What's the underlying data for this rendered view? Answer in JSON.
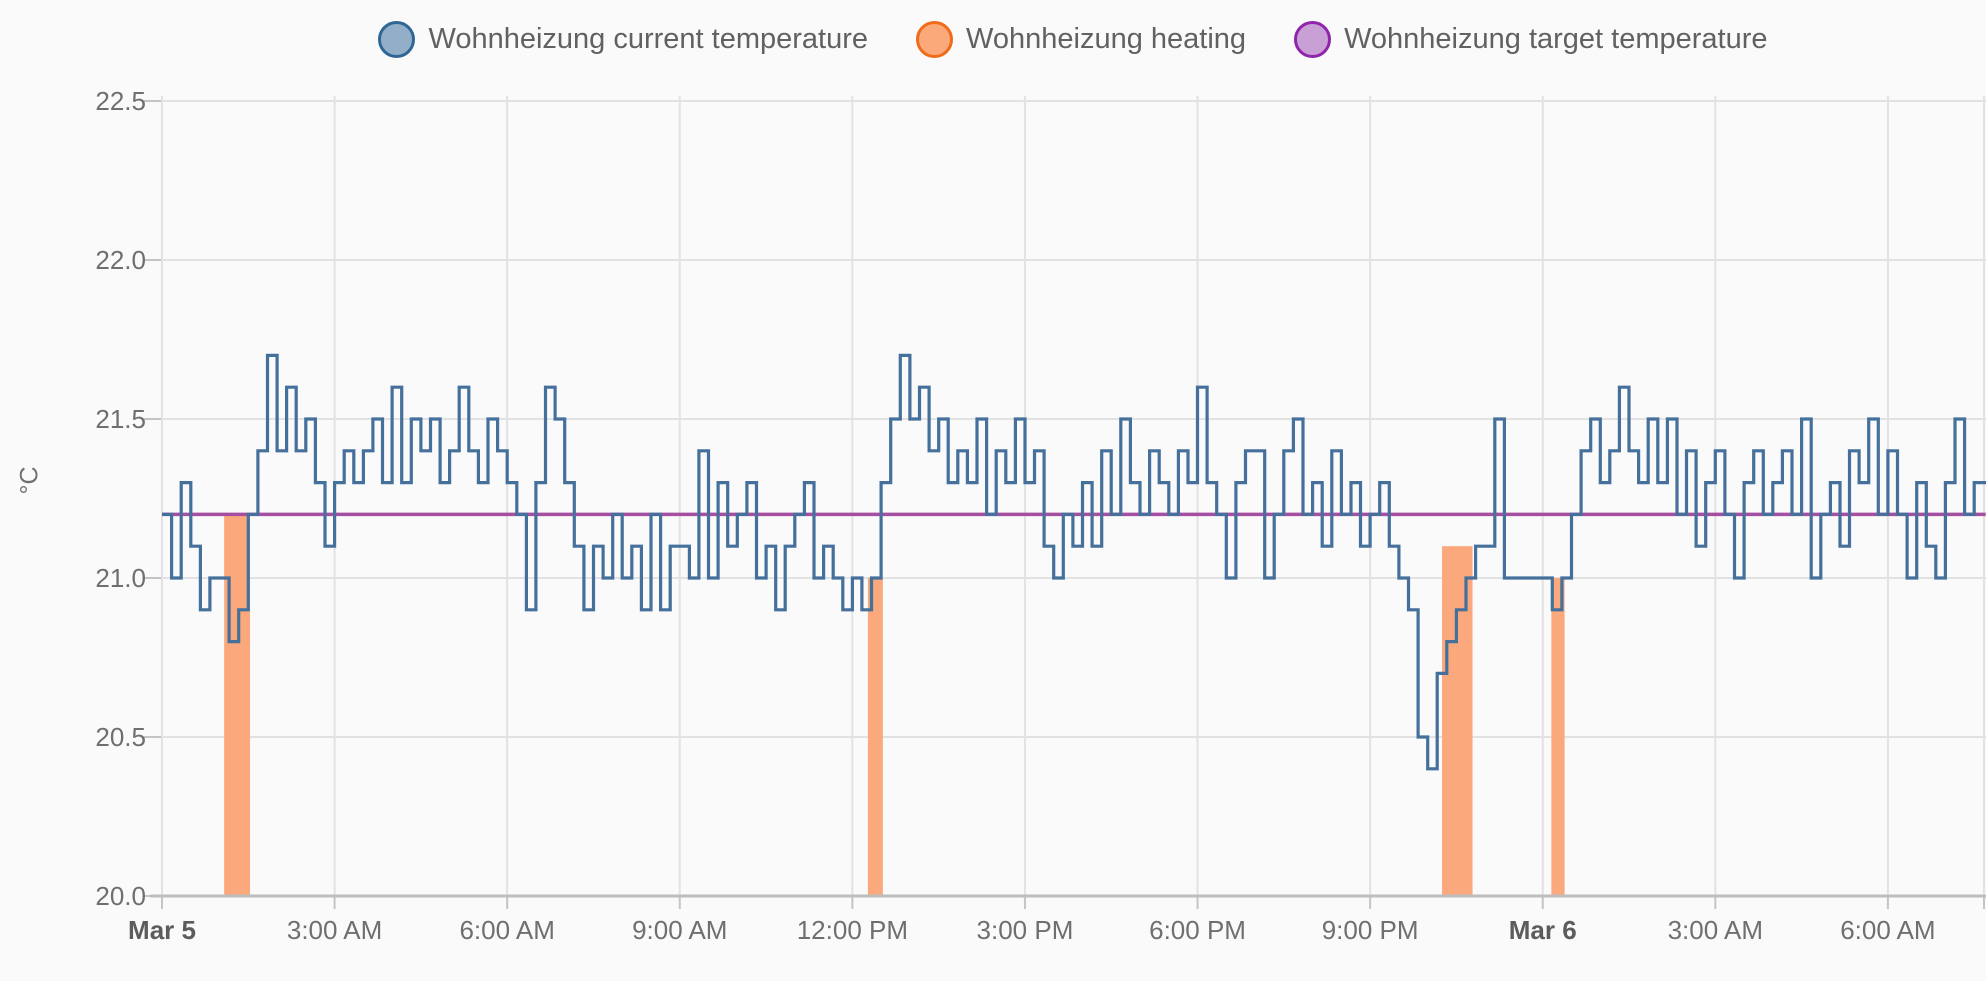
{
  "legend": {
    "items": [
      {
        "id": "current",
        "label": "Wohnheizung current temperature",
        "marker_fill": "#93aec8",
        "marker_stroke": "#2f6694"
      },
      {
        "id": "heating",
        "label": "Wohnheizung heating",
        "marker_fill": "#fba87a",
        "marker_stroke": "#ef6c1a"
      },
      {
        "id": "target",
        "label": "Wohnheizung target temperature",
        "marker_fill": "#c9a0d6",
        "marker_stroke": "#8f25ab"
      }
    ]
  },
  "chart_data": {
    "type": "line",
    "title": "",
    "ylabel": "°C",
    "ylim": [
      20.0,
      22.5
    ],
    "grid": true,
    "legend_position": "top",
    "y_ticks": [
      {
        "value": 22.5,
        "label": "22.5"
      },
      {
        "value": 22.0,
        "label": "22.0"
      },
      {
        "value": 21.5,
        "label": "21.5"
      },
      {
        "value": 21.0,
        "label": "21.0"
      },
      {
        "value": 20.5,
        "label": "20.5"
      },
      {
        "value": 20.0,
        "label": "20.0"
      }
    ],
    "x_ticks": [
      {
        "hour": 0,
        "label": "Mar 5",
        "bold": true
      },
      {
        "hour": 3,
        "label": "3:00 AM",
        "bold": false
      },
      {
        "hour": 6,
        "label": "6:00 AM",
        "bold": false
      },
      {
        "hour": 9,
        "label": "9:00 AM",
        "bold": false
      },
      {
        "hour": 12,
        "label": "12:00 PM",
        "bold": false
      },
      {
        "hour": 15,
        "label": "3:00 PM",
        "bold": false
      },
      {
        "hour": 18,
        "label": "6:00 PM",
        "bold": false
      },
      {
        "hour": 21,
        "label": "9:00 PM",
        "bold": false
      },
      {
        "hour": 24,
        "label": "Mar 6",
        "bold": true
      },
      {
        "hour": 27,
        "label": "3:00 AM",
        "bold": false
      },
      {
        "hour": 30,
        "label": "6:00 AM",
        "bold": false
      }
    ],
    "x_hours_total": 31.7,
    "series": [
      {
        "name": "Wohnheizung current temperature",
        "type": "step_line",
        "color": "#45709c",
        "start_hour": 0,
        "step_minutes": 10,
        "values": [
          21.2,
          21.0,
          21.3,
          21.1,
          20.9,
          21.0,
          21.0,
          20.8,
          20.9,
          21.2,
          21.4,
          21.7,
          21.4,
          21.6,
          21.4,
          21.5,
          21.3,
          21.1,
          21.3,
          21.4,
          21.3,
          21.4,
          21.5,
          21.3,
          21.6,
          21.3,
          21.5,
          21.4,
          21.5,
          21.3,
          21.4,
          21.6,
          21.4,
          21.3,
          21.5,
          21.4,
          21.3,
          21.2,
          20.9,
          21.3,
          21.6,
          21.5,
          21.3,
          21.1,
          20.9,
          21.1,
          21.0,
          21.2,
          21.0,
          21.1,
          20.9,
          21.2,
          20.9,
          21.1,
          21.1,
          21.0,
          21.4,
          21.0,
          21.3,
          21.1,
          21.2,
          21.3,
          21.0,
          21.1,
          20.9,
          21.1,
          21.2,
          21.3,
          21.0,
          21.1,
          21.0,
          20.9,
          21.0,
          20.9,
          21.0,
          21.3,
          21.5,
          21.7,
          21.5,
          21.6,
          21.4,
          21.5,
          21.3,
          21.4,
          21.3,
          21.5,
          21.2,
          21.4,
          21.3,
          21.5,
          21.3,
          21.4,
          21.1,
          21.0,
          21.2,
          21.1,
          21.3,
          21.1,
          21.4,
          21.2,
          21.5,
          21.3,
          21.2,
          21.4,
          21.3,
          21.2,
          21.4,
          21.3,
          21.6,
          21.3,
          21.2,
          21.0,
          21.3,
          21.4,
          21.4,
          21.0,
          21.2,
          21.4,
          21.5,
          21.2,
          21.3,
          21.1,
          21.4,
          21.2,
          21.3,
          21.1,
          21.2,
          21.3,
          21.1,
          21.0,
          20.9,
          20.5,
          20.4,
          20.7,
          20.8,
          20.9,
          21.0,
          21.1,
          21.1,
          21.5,
          21.0,
          21.0,
          21.0,
          21.0,
          21.0,
          20.9,
          21.0,
          21.2,
          21.4,
          21.5,
          21.3,
          21.4,
          21.6,
          21.4,
          21.3,
          21.5,
          21.3,
          21.5,
          21.2,
          21.4,
          21.1,
          21.3,
          21.4,
          21.2,
          21.0,
          21.3,
          21.4,
          21.2,
          21.3,
          21.4,
          21.2,
          21.5,
          21.0,
          21.2,
          21.3,
          21.1,
          21.4,
          21.3,
          21.5,
          21.2,
          21.4,
          21.2,
          21.0,
          21.3,
          21.1,
          21.0,
          21.3,
          21.5,
          21.2,
          21.3
        ]
      },
      {
        "name": "Wohnheizung heating",
        "type": "on_off_area",
        "color": "#f4772e",
        "fill": "#fba97c",
        "on_intervals": [
          {
            "from_hour": 1.08,
            "to_hour": 1.53,
            "top_value": 21.2
          },
          {
            "from_hour": 12.27,
            "to_hour": 12.53,
            "top_value": 21.0
          },
          {
            "from_hour": 22.25,
            "to_hour": 22.78,
            "top_value": 21.1
          },
          {
            "from_hour": 24.15,
            "to_hour": 24.38,
            "top_value": 21.0
          }
        ]
      },
      {
        "name": "Wohnheizung target temperature",
        "type": "constant_line",
        "color": "#a44fa1",
        "value": 21.2,
        "from_hour": 0,
        "to_hour": 31.7
      }
    ]
  },
  "colors": {
    "background": "#fafafa",
    "grid": "#e2e2e2",
    "axis_line": "#bdbdbd",
    "tick": "#c4c4c4",
    "tick_label": "#6f6f6f",
    "date_label": "#5c5c5c",
    "legend_text": "#616161"
  }
}
